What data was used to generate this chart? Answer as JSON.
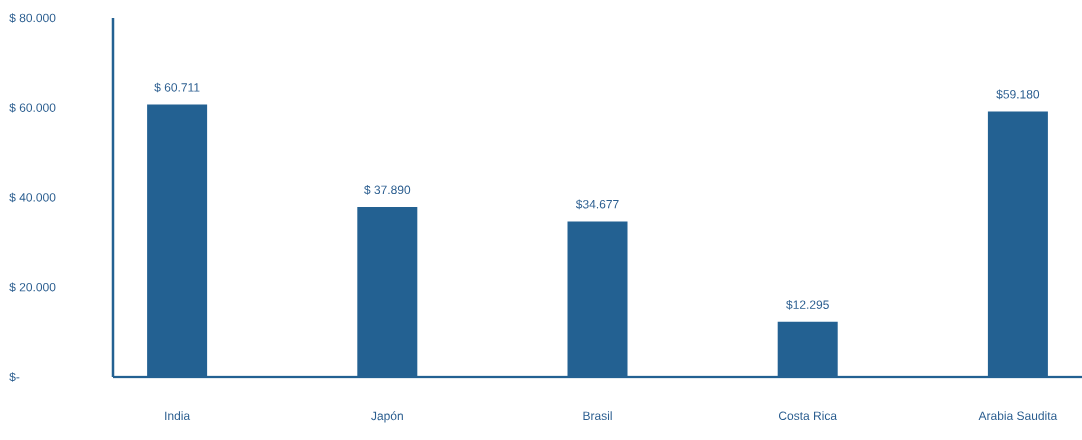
{
  "chart_data": {
    "type": "bar",
    "categories": [
      "India",
      "Japón",
      "Brasil",
      "Costa Rica",
      "Arabia Saudita"
    ],
    "values": [
      60711,
      37890,
      34677,
      12295,
      59180
    ],
    "value_labels": [
      "$ 60.711",
      "$ 37.890",
      "$34.677",
      "$12.295",
      "$59.180"
    ],
    "color": "#236192",
    "ylim": [
      0,
      80000
    ],
    "yticks": [
      {
        "value": 0,
        "label": "$-"
      },
      {
        "value": 20000,
        "label": "$ 20.000"
      },
      {
        "value": 40000,
        "label": "$ 40.000"
      },
      {
        "value": 60000,
        "label": "$ 60.000"
      },
      {
        "value": 80000,
        "label": "$ 80.000"
      }
    ],
    "grid": false
  }
}
